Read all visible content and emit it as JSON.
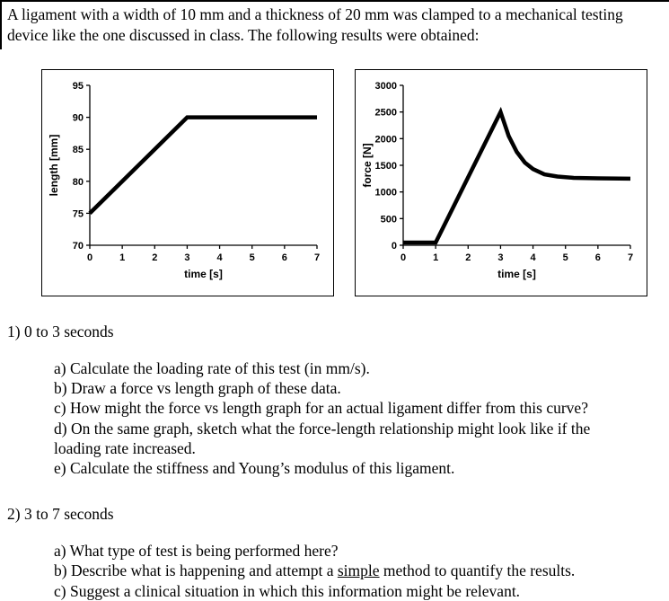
{
  "intro": "A ligament with a width of 10 mm and a thickness of 20 mm was clamped to a mechanical testing device like the one discussed in class.  The following results were obtained:",
  "questions": {
    "q1": {
      "heading": "1) 0 to 3 seconds",
      "items": [
        "a) Calculate the loading rate of this test (in mm/s).",
        "b) Draw a force vs length graph of these data.",
        "c) How might the force vs length graph for an actual ligament differ from this curve?",
        "d) On the same graph, sketch what the force-length relationship might look like if the loading rate increased.",
        "e) Calculate the stiffness and Young’s modulus of this ligament."
      ]
    },
    "q2": {
      "heading": "2) 3 to 7 seconds",
      "item_a": "a) What type of test is being performed here?",
      "item_b": {
        "pre": "b) Describe what is happening and attempt a ",
        "underline": "simple",
        "post": " method to quantify the results."
      },
      "item_c": "c) Suggest a clinical situation in which this information might be relevant."
    }
  },
  "chart_data": [
    {
      "type": "line",
      "title": "",
      "xlabel": "time [s]",
      "ylabel": "length [mm]",
      "xlim": [
        0,
        7
      ],
      "ylim": [
        70,
        95
      ],
      "xticks": [
        0,
        1,
        2,
        3,
        4,
        5,
        6,
        7
      ],
      "yticks": [
        70,
        75,
        80,
        85,
        90,
        95
      ],
      "grid": false,
      "legend": "none",
      "line_color": "#000000",
      "points": [
        [
          0,
          75
        ],
        [
          3,
          90
        ],
        [
          7,
          90
        ]
      ]
    },
    {
      "type": "line",
      "title": "",
      "xlabel": "time [s]",
      "ylabel": "force [N]",
      "xlim": [
        0,
        7
      ],
      "ylim": [
        0,
        3000
      ],
      "xticks": [
        0,
        1,
        2,
        3,
        4,
        5,
        6,
        7
      ],
      "yticks": [
        0,
        500,
        1000,
        1500,
        2000,
        2500,
        3000
      ],
      "grid": false,
      "legend": "none",
      "line_color": "#000000",
      "points": [
        [
          0,
          50
        ],
        [
          1,
          50
        ],
        [
          3,
          2500
        ],
        [
          3.25,
          2050
        ],
        [
          3.5,
          1750
        ],
        [
          3.75,
          1550
        ],
        [
          4,
          1430
        ],
        [
          4.35,
          1330
        ],
        [
          4.75,
          1290
        ],
        [
          5.25,
          1265
        ],
        [
          6,
          1255
        ],
        [
          7,
          1250
        ]
      ]
    }
  ]
}
